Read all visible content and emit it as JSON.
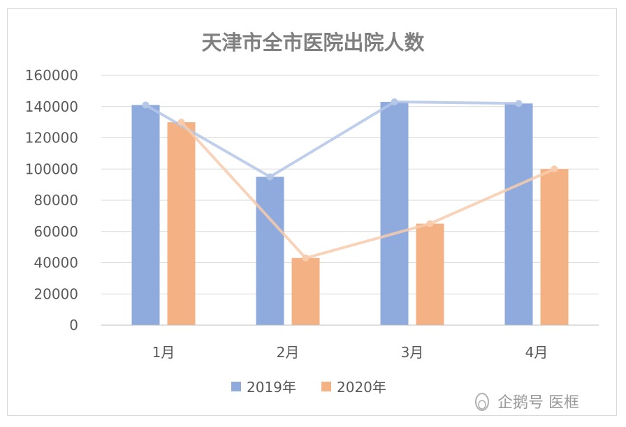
{
  "chart_data": {
    "type": "bar",
    "title": "天津市全市医院出院人数",
    "categories": [
      "1月",
      "2月",
      "3月",
      "4月"
    ],
    "series": [
      {
        "name": "2019年",
        "values": [
          141000,
          95000,
          143000,
          142000
        ],
        "color": "#8faadc"
      },
      {
        "name": "2020年",
        "values": [
          130000,
          43000,
          65000,
          100000
        ],
        "color": "#f4b183"
      }
    ],
    "line_overlay": [
      {
        "series": "2019年",
        "values": [
          141000,
          95000,
          143000,
          142000
        ],
        "color": "#b4c7e7"
      },
      {
        "series": "2020年",
        "values": [
          130000,
          43000,
          65000,
          100000
        ],
        "color": "#f8cbad"
      }
    ],
    "ylim": [
      0,
      160000
    ],
    "yticks": [
      "0",
      "20000",
      "40000",
      "60000",
      "80000",
      "100000",
      "120000",
      "140000",
      "160000"
    ],
    "xlabel": "",
    "ylabel": "",
    "grid": true,
    "legend_position": "bottom"
  },
  "watermark": {
    "text": "企鹅号 医框",
    "icon": "penguin-icon"
  }
}
